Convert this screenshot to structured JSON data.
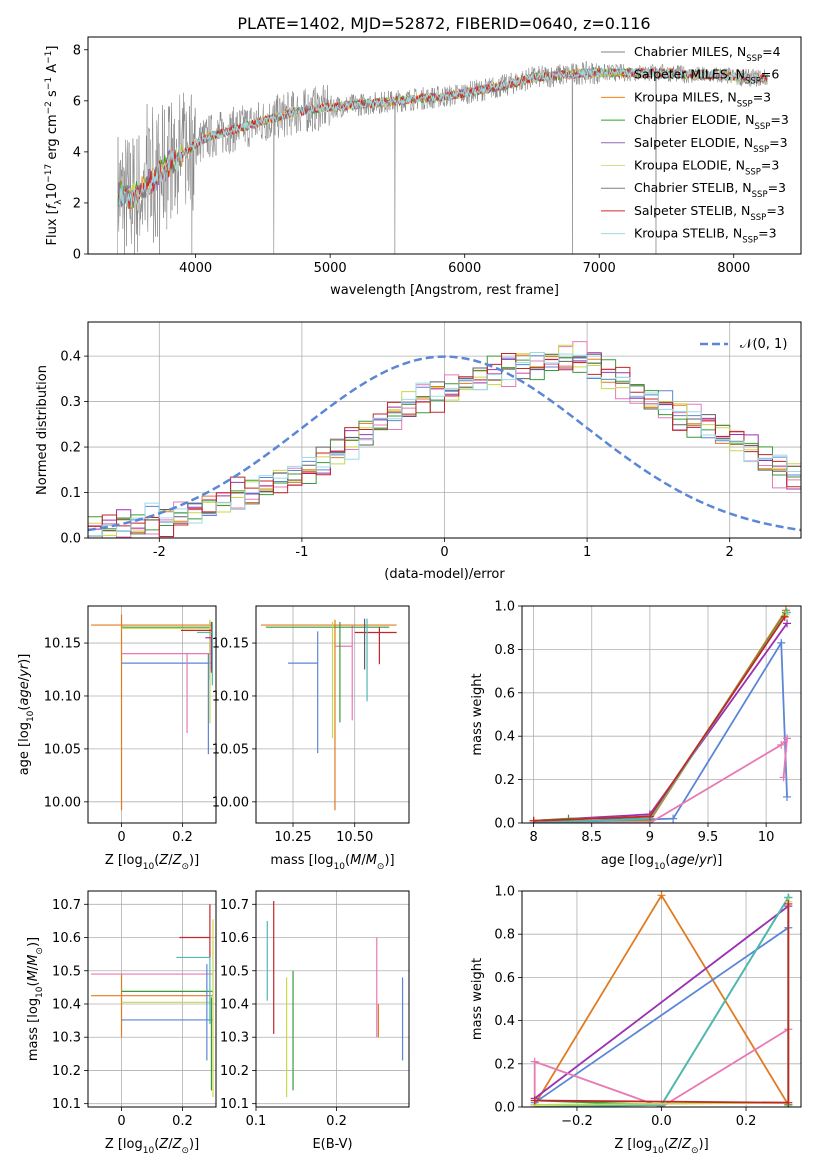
{
  "figure_title": "PLATE=1402, MJD=52872, FIBERID=0640, z=0.116",
  "colors": {
    "chabrier_miles": "#808080",
    "salpeter_miles": "#bcbd22",
    "kroupa_miles": "#ff7f0e",
    "chabrier_elodie": "#2ca02c",
    "salpeter_elodie": "#9467bd",
    "kroupa_elodie": "#dbdb8d",
    "chabrier_stelib": "#7f7f7f",
    "salpeter_stelib": "#d62728",
    "kroupa_stelib": "#9edae5",
    "gaussian": "#5c87d6",
    "orange": "#e07b1f",
    "purple": "#9b30b0",
    "blue": "#5b86d6",
    "pink": "#e879b4",
    "green": "#3a9a3a",
    "teal": "#4fb8b8",
    "lime": "#c8d84a",
    "red": "#c0262a",
    "gray": "#606060"
  },
  "chart_data": [
    {
      "id": "spectrum",
      "type": "line",
      "title": "PLATE=1402, MJD=52872, FIBERID=0640, z=0.116",
      "xlabel": "wavelength [Angstrom, rest frame]",
      "ylabel": "Flux [f_λ 10^-17 erg cm^-2 s^-1 A^-1]",
      "xlim": [
        3200,
        8500
      ],
      "ylim": [
        0,
        8.5
      ],
      "xticks": [
        4000,
        5000,
        6000,
        7000,
        8000
      ],
      "yticks": [
        0,
        2,
        4,
        6,
        8
      ],
      "legend_position": "top-right",
      "legend": [
        {
          "label": "Chabrier MILES, N_SSP=4",
          "base": "Chabrier MILES, N",
          "sub": "SSP",
          "tail": "=4",
          "color": "#808080"
        },
        {
          "label": "Salpeter MILES, N_SSP=6",
          "base": "Salpeter MILES, N",
          "sub": "SSP",
          "tail": "=6",
          "color": "#bcbd22"
        },
        {
          "label": "Kroupa MILES, N_SSP=3",
          "base": "Kroupa MILES, N",
          "sub": "SSP",
          "tail": "=3",
          "color": "#ff7f0e"
        },
        {
          "label": "Chabrier ELODIE, N_SSP=3",
          "base": "Chabrier ELODIE, N",
          "sub": "SSP",
          "tail": "=3",
          "color": "#2ca02c"
        },
        {
          "label": "Salpeter ELODIE, N_SSP=3",
          "base": "Salpeter ELODIE, N",
          "sub": "SSP",
          "tail": "=3",
          "color": "#9467bd"
        },
        {
          "label": "Kroupa ELODIE, N_SSP=3",
          "base": "Kroupa ELODIE, N",
          "sub": "SSP",
          "tail": "=3",
          "color": "#dbdb8d"
        },
        {
          "label": "Chabrier STELIB, N_SSP=3",
          "base": "Chabrier STELIB, N",
          "sub": "SSP",
          "tail": "=3",
          "color": "#7f7f7f"
        },
        {
          "label": "Salpeter STELIB, N_SSP=3",
          "base": "Salpeter STELIB, N",
          "sub": "SSP",
          "tail": "=3",
          "color": "#d62728"
        },
        {
          "label": "Kroupa STELIB, N_SSP=3",
          "base": "Kroupa STELIB, N",
          "sub": "SSP",
          "tail": "=3",
          "color": "#9edae5"
        }
      ],
      "continuum": {
        "x": [
          3420,
          3520,
          3620,
          3720,
          3820,
          3900,
          4000,
          4100,
          4300,
          4500,
          4700,
          4900,
          5100,
          5300,
          5500,
          5700,
          5900,
          6100,
          6300,
          6500,
          6700,
          6900,
          7100,
          7300,
          7500,
          7700,
          7900,
          8100,
          8250
        ],
        "y": [
          2.4,
          2.2,
          2.6,
          3.1,
          3.6,
          3.9,
          4.3,
          4.6,
          4.9,
          5.2,
          5.5,
          5.7,
          5.8,
          5.9,
          6.0,
          6.1,
          6.2,
          6.4,
          6.6,
          6.9,
          7.0,
          7.1,
          7.1,
          7.1,
          7.1,
          7.0,
          7.0,
          6.9,
          6.9
        ]
      },
      "dips": [
        {
          "x": 3730,
          "y": 0
        },
        {
          "x": 3970,
          "y": 0
        },
        {
          "x": 4580,
          "y": 0
        },
        {
          "x": 5480,
          "y": 0
        },
        {
          "x": 6800,
          "y": 0
        },
        {
          "x": 7420,
          "y": 0
        }
      ]
    },
    {
      "id": "residuals",
      "type": "line",
      "xlabel": "(data-model)/error",
      "ylabel": "Normed distribution",
      "xlim": [
        -2.5,
        2.5
      ],
      "ylim": [
        0,
        0.475
      ],
      "xticks": [
        -2,
        -1,
        0,
        1,
        2
      ],
      "yticks": [
        0.0,
        0.1,
        0.2,
        0.3,
        0.4
      ],
      "grid": true,
      "legend_position": "top-right",
      "legend": [
        {
          "label": "N(0,1)",
          "text": "𝒩(0, 1)",
          "color": "#5c87d6"
        }
      ],
      "hist_base": {
        "bin_width": 0.1,
        "x_start": -2.5,
        "values": [
          0.02,
          0.02,
          0.03,
          0.03,
          0.04,
          0.04,
          0.05,
          0.06,
          0.07,
          0.08,
          0.09,
          0.1,
          0.11,
          0.13,
          0.14,
          0.15,
          0.17,
          0.19,
          0.21,
          0.23,
          0.25,
          0.27,
          0.29,
          0.31,
          0.32,
          0.33,
          0.34,
          0.35,
          0.36,
          0.37,
          0.38,
          0.38,
          0.39,
          0.4,
          0.39,
          0.38,
          0.36,
          0.34,
          0.32,
          0.3,
          0.29,
          0.27,
          0.26,
          0.25,
          0.23,
          0.21,
          0.19,
          0.17,
          0.15,
          0.14
        ]
      },
      "hist_offsets": [
        0.0,
        0.015,
        -0.012,
        0.02,
        -0.018,
        0.01,
        -0.008,
        0.022,
        -0.015
      ]
    },
    {
      "id": "age_vs_Z",
      "type": "scatter",
      "xlabel": "Z [log10(Z/Z⊙)]",
      "ylabel": "age [log10(age/yr)]",
      "xlim": [
        -0.11,
        0.31
      ],
      "ylim": [
        9.98,
        10.185
      ],
      "xticks": [
        0.0,
        0.2
      ],
      "yticks": [
        10.0,
        10.05,
        10.1,
        10.15
      ],
      "ytick_labels": [
        "10.00",
        "10.05",
        "10.10",
        "10.15"
      ],
      "grid": true,
      "points": [
        {
          "x": 0.0,
          "y": 10.167,
          "xerr_lo": 0.1,
          "xerr_hi": 0.3,
          "yerr_lo": 0.175,
          "yerr_hi": 0.01,
          "color": "#e07b1f"
        },
        {
          "x": 0.0,
          "y": 10.131,
          "xerr_lo": 0.0,
          "xerr_hi": 0.3,
          "yerr_lo": 0.0,
          "yerr_hi": 0.0,
          "color": "#5b86d6"
        },
        {
          "x": 0.3,
          "y": 10.14,
          "xerr_lo": 0.3,
          "xerr_hi": 0.0,
          "yerr_lo": 0.0,
          "yerr_hi": 0.0,
          "color": "#e879b4"
        },
        {
          "x": 0.215,
          "y": 10.14,
          "xerr_lo": 0.0,
          "xerr_hi": 0.0,
          "yerr_lo": 0.075,
          "yerr_hi": 0.0,
          "color": "#e879b4"
        },
        {
          "x": 0.29,
          "y": 10.165,
          "xerr_lo": 0.29,
          "xerr_hi": 0.0,
          "yerr_lo": 0.05,
          "yerr_hi": 0.005,
          "color": "#3a9a3a"
        },
        {
          "x": 0.29,
          "y": 10.164,
          "xerr_lo": 0.29,
          "xerr_hi": 0.0,
          "yerr_lo": 0.09,
          "yerr_hi": 0.008,
          "color": "#c8d84a"
        },
        {
          "x": 0.295,
          "y": 10.162,
          "xerr_lo": 0.1,
          "xerr_hi": 0.0,
          "yerr_lo": 0.04,
          "yerr_hi": 0.008,
          "color": "#c0262a"
        },
        {
          "x": 0.298,
          "y": 10.16,
          "xerr_lo": 0.05,
          "xerr_hi": 0.0,
          "yerr_lo": 0.05,
          "yerr_hi": 0.01,
          "color": "#4fb8b8"
        },
        {
          "x": 0.295,
          "y": 10.155,
          "xerr_lo": 0.02,
          "xerr_hi": 0.0,
          "yerr_lo": 0.03,
          "yerr_hi": 0.0,
          "color": "#9b30b0"
        },
        {
          "x": 0.285,
          "y": 10.14,
          "xerr_lo": 0.0,
          "xerr_hi": 0.0,
          "yerr_lo": 0.095,
          "yerr_hi": 0.0,
          "color": "#5b86d6"
        }
      ]
    },
    {
      "id": "age_vs_mass",
      "type": "scatter",
      "xlabel": "mass [log10(M/M⊙)]",
      "ylabel": "",
      "xlim": [
        10.1,
        10.72
      ],
      "ylim": [
        9.98,
        10.185
      ],
      "xticks": [
        10.25,
        10.5
      ],
      "xtick_labels": [
        "10.25",
        "10.50"
      ],
      "yticks": [
        10.0,
        10.05,
        10.1,
        10.15
      ],
      "ytick_labels": [
        "10.00",
        "10.05",
        "10.10",
        "10.15"
      ],
      "grid": true,
      "points": [
        {
          "x": 10.42,
          "y": 10.167,
          "xerr_lo": 0.3,
          "xerr_hi": 0.25,
          "yerr_lo": 0.175,
          "yerr_hi": 0.005,
          "color": "#e07b1f"
        },
        {
          "x": 10.35,
          "y": 10.131,
          "xerr_lo": 0.12,
          "xerr_hi": 0.0,
          "yerr_lo": 0.085,
          "yerr_hi": 0.03,
          "color": "#5b86d6"
        },
        {
          "x": 10.49,
          "y": 10.147,
          "xerr_lo": 0.07,
          "xerr_hi": 0.0,
          "yerr_lo": 0.07,
          "yerr_hi": 0.02,
          "color": "#e879b4"
        },
        {
          "x": 10.44,
          "y": 10.165,
          "xerr_lo": 0.3,
          "xerr_hi": 0.2,
          "yerr_lo": 0.09,
          "yerr_hi": 0.005,
          "color": "#3a9a3a"
        },
        {
          "x": 10.41,
          "y": 10.165,
          "xerr_lo": 0.0,
          "xerr_hi": 0.0,
          "yerr_lo": 0.105,
          "yerr_hi": 0.005,
          "color": "#c8d84a"
        },
        {
          "x": 10.6,
          "y": 10.16,
          "xerr_lo": 0.1,
          "xerr_hi": 0.07,
          "yerr_lo": 0.03,
          "yerr_hi": 0.005,
          "color": "#c0262a"
        },
        {
          "x": 10.55,
          "y": 10.155,
          "xerr_lo": 0.0,
          "xerr_hi": 0.0,
          "yerr_lo": 0.06,
          "yerr_hi": 0.018,
          "color": "#4fb8b8"
        },
        {
          "x": 10.54,
          "y": 10.16,
          "xerr_lo": 0.0,
          "xerr_hi": 0.0,
          "yerr_lo": 0.035,
          "yerr_hi": 0.013,
          "color": "#606060"
        }
      ]
    },
    {
      "id": "weight_vs_age",
      "type": "line",
      "xlabel": "age [log10(age/yr)]",
      "ylabel": "mass weight",
      "xlim": [
        7.9,
        10.3
      ],
      "ylim": [
        0,
        1.0
      ],
      "xticks": [
        8.0,
        8.5,
        9.0,
        9.5,
        10.0
      ],
      "yticks": [
        0.0,
        0.2,
        0.4,
        0.6,
        0.8,
        1.0
      ],
      "grid": true,
      "series": [
        {
          "color": "#e07b1f",
          "x": [
            8.0,
            9.0,
            10.17
          ],
          "y": [
            0.01,
            0.01,
            0.98
          ]
        },
        {
          "color": "#9b30b0",
          "x": [
            8.0,
            9.0,
            10.18
          ],
          "y": [
            0.01,
            0.04,
            0.92
          ]
        },
        {
          "color": "#5b86d6",
          "x": [
            8.0,
            9.2,
            10.13,
            10.18
          ],
          "y": [
            0.0,
            0.02,
            0.83,
            0.12
          ]
        },
        {
          "color": "#e879b4",
          "x": [
            8.0,
            9.0,
            10.13,
            10.18,
            10.15
          ],
          "y": [
            0.0,
            0.0,
            0.36,
            0.39,
            0.21
          ]
        },
        {
          "color": "#3a9a3a",
          "x": [
            8.0,
            8.3,
            9.0,
            10.17
          ],
          "y": [
            0.01,
            0.02,
            0.02,
            0.97
          ]
        },
        {
          "color": "#4fb8b8",
          "x": [
            8.0,
            9.0,
            10.18
          ],
          "y": [
            0.0,
            0.02,
            0.97
          ]
        },
        {
          "color": "#c8d84a",
          "x": [
            8.0,
            9.0,
            10.17
          ],
          "y": [
            0.01,
            0.03,
            0.96
          ]
        },
        {
          "color": "#c0262a",
          "x": [
            8.0,
            9.0,
            10.16
          ],
          "y": [
            0.01,
            0.03,
            0.95
          ]
        }
      ]
    },
    {
      "id": "mass_vs_Z",
      "type": "scatter",
      "xlabel": "Z [log10(Z/Z⊙)]",
      "ylabel": "mass [log10(M/M⊙)]",
      "xlim": [
        -0.11,
        0.31
      ],
      "ylim": [
        10.09,
        10.74
      ],
      "xticks": [
        0.0,
        0.2
      ],
      "yticks": [
        10.1,
        10.2,
        10.3,
        10.4,
        10.5,
        10.6,
        10.7
      ],
      "grid": true,
      "points": [
        {
          "x": 0.0,
          "y": 10.425,
          "xerr_lo": 0.1,
          "xerr_hi": 0.3,
          "yerr_lo": 0.125,
          "yerr_hi": 0.065,
          "color": "#e07b1f"
        },
        {
          "x": 0.0,
          "y": 10.352,
          "xerr_lo": 0.0,
          "xerr_hi": 0.3,
          "yerr_lo": 0.0,
          "yerr_hi": 0.0,
          "color": "#5b86d6"
        },
        {
          "x": 0.3,
          "y": 10.49,
          "xerr_lo": 0.4,
          "xerr_hi": 0.0,
          "yerr_lo": 0.0,
          "yerr_hi": 0.0,
          "color": "#e879b4"
        },
        {
          "x": 0.0,
          "y": 10.438,
          "xerr_lo": 0.0,
          "xerr_hi": 0.3,
          "yerr_lo": 0.0,
          "yerr_hi": 0.0,
          "color": "#3a9a3a"
        },
        {
          "x": 0.3,
          "y": 10.405,
          "xerr_lo": 0.3,
          "xerr_hi": 0.0,
          "yerr_lo": 0.285,
          "yerr_hi": 0.25,
          "color": "#c8d84a"
        },
        {
          "x": 0.29,
          "y": 10.6,
          "xerr_lo": 0.1,
          "xerr_hi": 0.0,
          "yerr_lo": 0.06,
          "yerr_hi": 0.1,
          "color": "#c0262a"
        },
        {
          "x": 0.29,
          "y": 10.54,
          "xerr_lo": 0.11,
          "xerr_hi": 0.0,
          "yerr_lo": 0.2,
          "yerr_hi": 0.0,
          "color": "#4fb8b8"
        },
        {
          "x": 0.28,
          "y": 10.52,
          "xerr_lo": 0.0,
          "xerr_hi": 0.0,
          "yerr_lo": 0.29,
          "yerr_hi": 0.0,
          "color": "#5b86d6"
        },
        {
          "x": 0.295,
          "y": 10.42,
          "xerr_lo": 0.0,
          "xerr_hi": 0.0,
          "yerr_lo": 0.28,
          "yerr_hi": 0.0,
          "color": "#3a9a3a"
        }
      ]
    },
    {
      "id": "mass_vs_ebv",
      "type": "scatter",
      "xlabel": "E(B-V)",
      "ylabel": "",
      "xlim": [
        0.1,
        0.29
      ],
      "ylim": [
        10.09,
        10.74
      ],
      "xticks": [
        0.1,
        0.2
      ],
      "yticks": [
        10.1,
        10.2,
        10.3,
        10.4,
        10.5,
        10.6,
        10.7
      ],
      "grid": true,
      "points": [
        {
          "x": 0.114,
          "y": 10.5,
          "xerr_lo": 0.0,
          "xerr_hi": 0.0,
          "yerr_lo": 0.09,
          "yerr_hi": 0.15,
          "color": "#4fb8b8"
        },
        {
          "x": 0.122,
          "y": 10.55,
          "xerr_lo": 0.0,
          "xerr_hi": 0.0,
          "yerr_lo": 0.24,
          "yerr_hi": 0.16,
          "color": "#c0262a"
        },
        {
          "x": 0.138,
          "y": 10.3,
          "xerr_lo": 0.0,
          "xerr_hi": 0.0,
          "yerr_lo": 0.18,
          "yerr_hi": 0.18,
          "color": "#c8d84a"
        },
        {
          "x": 0.146,
          "y": 10.32,
          "xerr_lo": 0.0,
          "xerr_hi": 0.0,
          "yerr_lo": 0.18,
          "yerr_hi": 0.18,
          "color": "#3a9a3a"
        },
        {
          "x": 0.25,
          "y": 10.45,
          "xerr_lo": 0.0,
          "xerr_hi": 0.0,
          "yerr_lo": 0.15,
          "yerr_hi": 0.15,
          "color": "#e879b4"
        },
        {
          "x": 0.252,
          "y": 10.4,
          "xerr_lo": 0.0,
          "xerr_hi": 0.0,
          "yerr_lo": 0.1,
          "yerr_hi": 0.0,
          "color": "#e07b1f"
        },
        {
          "x": 0.282,
          "y": 10.36,
          "xerr_lo": 0.0,
          "xerr_hi": 0.0,
          "yerr_lo": 0.13,
          "yerr_hi": 0.12,
          "color": "#5b86d6"
        }
      ]
    },
    {
      "id": "weight_vs_Z",
      "type": "line",
      "xlabel": "Z [log10(Z/Z⊙)]",
      "ylabel": "mass weight",
      "xlim": [
        -0.33,
        0.33
      ],
      "ylim": [
        0,
        1.0
      ],
      "xticks": [
        -0.2,
        0.0,
        0.2
      ],
      "xtick_labels": [
        "−0.2",
        "0.0",
        "0.2"
      ],
      "yticks": [
        0.0,
        0.2,
        0.4,
        0.6,
        0.8,
        1.0
      ],
      "grid": true,
      "series": [
        {
          "color": "#e07b1f",
          "x": [
            -0.3,
            0.0,
            0.3
          ],
          "y": [
            0.01,
            0.98,
            0.01
          ]
        },
        {
          "color": "#9b30b0",
          "x": [
            -0.3,
            0.3
          ],
          "y": [
            0.04,
            0.93
          ]
        },
        {
          "color": "#5b86d6",
          "x": [
            -0.3,
            0.3
          ],
          "y": [
            0.02,
            0.83
          ]
        },
        {
          "color": "#e879b4",
          "x": [
            -0.3,
            -0.3,
            0.0,
            0.3
          ],
          "y": [
            0.0,
            0.21,
            0.0,
            0.36
          ]
        },
        {
          "color": "#3a9a3a",
          "x": [
            -0.3,
            0.0,
            0.3,
            0.3
          ],
          "y": [
            0.03,
            0.01,
            0.97,
            0.01
          ]
        },
        {
          "color": "#4fb8b8",
          "x": [
            -0.3,
            0.0,
            0.3,
            0.3
          ],
          "y": [
            0.0,
            0.01,
            0.97,
            0.0
          ]
        },
        {
          "color": "#c8d84a",
          "x": [
            -0.3,
            0.3,
            0.3
          ],
          "y": [
            0.01,
            0.02,
            0.95
          ]
        },
        {
          "color": "#c0262a",
          "x": [
            -0.3,
            0.3,
            0.3
          ],
          "y": [
            0.03,
            0.02,
            0.94
          ]
        }
      ]
    }
  ]
}
